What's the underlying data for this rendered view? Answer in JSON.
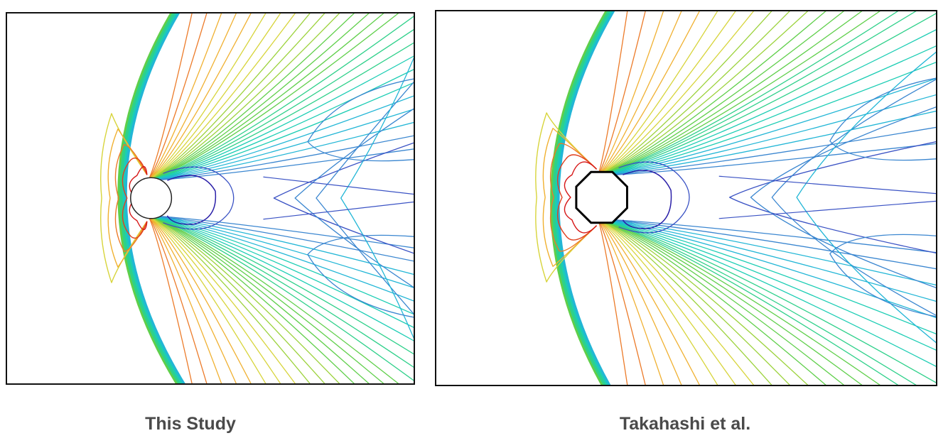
{
  "panels": [
    {
      "caption": "This Study",
      "body_shape": "circle"
    },
    {
      "caption": "Takahashi et al.",
      "body_shape": "octagon"
    }
  ],
  "colormap": [
    "#2a1fa8",
    "#3a52c4",
    "#3a86d0",
    "#22b6d6",
    "#1ccdb4",
    "#2ed08a",
    "#5fcf4a",
    "#9bd23a",
    "#d7d43a",
    "#f0b030",
    "#ec7a28",
    "#e0401e",
    "#d61414"
  ],
  "colors": {
    "frame": "#111111",
    "caption": "#4a4a4a",
    "background": "#ffffff"
  }
}
